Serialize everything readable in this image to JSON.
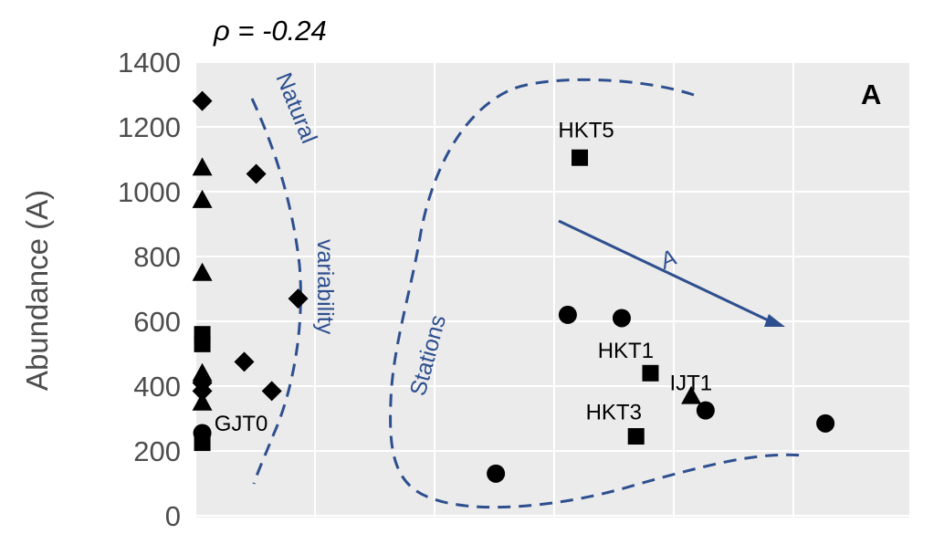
{
  "chart_data": {
    "type": "scatter",
    "title": "ρ = -0.24",
    "panel_label": "A",
    "ylabel": "Abundance (A)",
    "xlabel": "",
    "ylim": [
      0,
      1400
    ],
    "yticks": [
      "0",
      "200",
      "400",
      "600",
      "800",
      "1000",
      "1200",
      "1400"
    ],
    "grid": true,
    "points": [
      {
        "shape": "diamond",
        "x": 0.0,
        "y": 1280
      },
      {
        "shape": "triangle",
        "x": 0.0,
        "y": 1075
      },
      {
        "shape": "triangle",
        "x": 0.0,
        "y": 975
      },
      {
        "shape": "triangle",
        "x": 0.0,
        "y": 750
      },
      {
        "shape": "square",
        "x": 0.0,
        "y": 560
      },
      {
        "shape": "square",
        "x": 0.0,
        "y": 530
      },
      {
        "shape": "triangle",
        "x": 0.0,
        "y": 440
      },
      {
        "shape": "diamond",
        "x": 0.0,
        "y": 410
      },
      {
        "shape": "diamond",
        "x": 0.0,
        "y": 385
      },
      {
        "shape": "triangle",
        "x": 0.0,
        "y": 350
      },
      {
        "shape": "circle",
        "x": 0.0,
        "y": 255
      },
      {
        "shape": "square",
        "x": 0.0,
        "y": 225
      },
      {
        "shape": "diamond",
        "x": 0.45,
        "y": 1055
      },
      {
        "shape": "diamond",
        "x": 0.8,
        "y": 670
      },
      {
        "shape": "diamond",
        "x": 0.35,
        "y": 475
      },
      {
        "shape": "diamond",
        "x": 0.58,
        "y": 385
      },
      {
        "shape": "circle",
        "x": 2.45,
        "y": 130
      },
      {
        "shape": "circle",
        "x": 3.05,
        "y": 620
      },
      {
        "shape": "square",
        "x": 3.15,
        "y": 1105
      },
      {
        "shape": "circle",
        "x": 3.5,
        "y": 610
      },
      {
        "shape": "square",
        "x": 3.62,
        "y": 245
      },
      {
        "shape": "square",
        "x": 3.74,
        "y": 440
      },
      {
        "shape": "triangle",
        "x": 4.08,
        "y": 370
      },
      {
        "shape": "circle",
        "x": 4.2,
        "y": 325
      },
      {
        "shape": "circle",
        "x": 5.2,
        "y": 285
      }
    ],
    "point_labels": [
      {
        "text": "HKT5",
        "x": 2.97,
        "y": 1190
      },
      {
        "text": "HKT1",
        "x": 3.3,
        "y": 510
      },
      {
        "text": "IJT1",
        "x": 3.9,
        "y": 410
      },
      {
        "text": "HKT3",
        "x": 3.2,
        "y": 320
      },
      {
        "text": "GJT0",
        "x": 0.1,
        "y": 285
      }
    ],
    "annotations": [
      {
        "text": "Natural"
      },
      {
        "text": "variability"
      },
      {
        "text": "Stations"
      },
      {
        "text": "A"
      }
    ]
  }
}
